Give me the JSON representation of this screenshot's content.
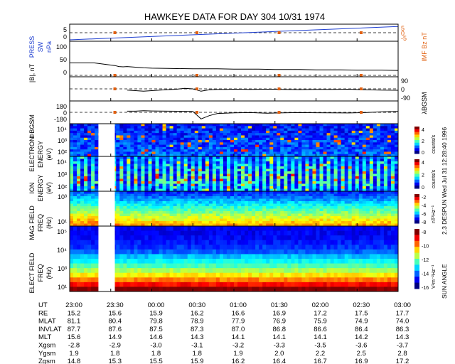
{
  "colors": {
    "press": "#1f3fd0",
    "imf": "#e06010",
    "line": "#000000",
    "dash": "#000000",
    "marker": "#e06010",
    "empty": "#ffffff"
  },
  "chart_data": {
    "type": "line",
    "title": "HAWKEYE DATA FOR DAY 304 10/31 1974",
    "side_label": "2.3 DESPUN  Wed Jul 31 12:28:40 1996",
    "side_label2": "SUN ANGLE",
    "time_axis": {
      "labels": [
        "23:00",
        "23:30",
        "00:00",
        "00:30",
        "01:00",
        "01:30",
        "02:00",
        "02:30",
        "03:00"
      ],
      "range_hours": [
        23.0,
        27.0
      ],
      "data_gap": [
        23.35,
        23.55
      ]
    },
    "panels": [
      {
        "name": "press-imf",
        "type": "line",
        "ylabel_left": [
          "PRESS",
          "SW",
          "nPa"
        ],
        "ylabel_right": [
          "IMF Bz nT"
        ],
        "yticks_left": [
          "5",
          "0"
        ],
        "yticks_right": [
          "5",
          "0",
          "-5"
        ],
        "series": [
          {
            "color": "press",
            "x": [
              23.0,
              27.0
            ],
            "y": [
              0.0,
              5.6
            ]
          }
        ],
        "ref_line": 3.0,
        "markers_x": [
          23.55,
          24.55,
          25.55,
          26.55
        ]
      },
      {
        "name": "b-magnitude",
        "type": "line",
        "ylabel_left": [
          "|B|, nT"
        ],
        "yticks_left": [
          "100",
          "50",
          "0"
        ],
        "ylim": [
          0,
          100
        ],
        "series": [
          {
            "color": "line",
            "x": [
              23.0,
              23.3,
              23.55,
              23.6,
              23.65,
              23.7,
              23.8,
              23.9,
              24.0,
              24.2,
              24.5,
              24.8,
              25.0,
              25.3,
              25.5,
              25.8,
              26.0,
              26.3,
              26.5,
              26.8,
              27.0
            ],
            "y": [
              38,
              38,
              30,
              27,
              26,
              27,
              25,
              23,
              22,
              21,
              20,
              20,
              19,
              19,
              18,
              18,
              17,
              17,
              16,
              16,
              15
            ]
          }
        ],
        "ref_line": 0,
        "markers_x": [
          23.55,
          24.55,
          25.55,
          26.55
        ]
      },
      {
        "name": "lambda-gsm",
        "type": "line",
        "ylabel_right": [
          "λBGSM"
        ],
        "yticks_right": [
          "90",
          "0",
          "-90"
        ],
        "ylim": [
          -90,
          90
        ],
        "series": [
          {
            "color": "line",
            "x": [
              23.7,
              23.8,
              23.9,
              24.0,
              24.1,
              24.2,
              24.3,
              24.4,
              24.5,
              24.6,
              24.7,
              24.8,
              24.9,
              25.0,
              25.2,
              25.4,
              25.6,
              25.8,
              26.0,
              26.2,
              26.4,
              26.6,
              26.8,
              27.0
            ],
            "y": [
              -10,
              -15,
              -20,
              -15,
              -10,
              -6,
              -3,
              5,
              0,
              -20,
              -8,
              -5,
              -5,
              -3,
              -4,
              -3,
              -4,
              -6,
              -5,
              -4,
              -3,
              -8,
              -10,
              -12
            ]
          }
        ],
        "ref_line": 0,
        "markers_x": [
          23.55,
          24.55,
          25.55,
          26.55
        ]
      },
      {
        "name": "phi-gsm",
        "type": "line",
        "ylabel_left": [
          "ΦBGSM"
        ],
        "yticks_left": [
          "180",
          "0",
          "-180"
        ],
        "ylim": [
          -180,
          180
        ],
        "series": [
          {
            "color": "line",
            "x": [
              23.7,
              23.8,
              23.9,
              24.0,
              24.2,
              24.4,
              24.5,
              24.6,
              24.7,
              24.8,
              25.0,
              25.2,
              25.4,
              25.6,
              25.8,
              26.0,
              26.2,
              26.4,
              26.6,
              26.8,
              27.0
            ],
            "y": [
              20,
              20,
              30,
              25,
              20,
              18,
              15,
              -120,
              -60,
              -20,
              -10,
              -5,
              -15,
              -10,
              -5,
              -8,
              -10,
              -12,
              -5,
              10,
              15
            ]
          }
        ],
        "ref_line": 0,
        "markers_x": [
          23.55,
          24.55,
          25.55,
          26.55
        ]
      },
      {
        "name": "electron-spectrogram",
        "type": "heatmap",
        "ylabel_left": [
          "ELECTRON",
          "ENERGY",
          "(eV)"
        ],
        "yticks_left": [
          "10⁴",
          "10³",
          "10²"
        ],
        "colorbar_ticks": [
          "4",
          "2",
          "0"
        ],
        "colorbar_label": "counts/s"
      },
      {
        "name": "ion-spectrogram",
        "type": "heatmap",
        "ylabel_left": [
          "ION",
          "ENERGY",
          "(eV)"
        ],
        "yticks_left": [
          "10⁴",
          "10³",
          "10²"
        ],
        "colorbar_ticks": [
          "4",
          "2",
          "0"
        ],
        "colorbar_label": "counts/s"
      },
      {
        "name": "mag-field-spectrogram",
        "type": "heatmap",
        "ylabel_left": [
          "MAG FIELD",
          "FREQ",
          "(Hz)"
        ],
        "yticks_left": [
          "10³",
          "10¹"
        ],
        "colorbar_ticks": [
          "-2",
          "-4",
          "-6",
          "-8"
        ],
        "colorbar_label": "nT²Hz⁻¹"
      },
      {
        "name": "elect-field-spectrogram",
        "type": "heatmap",
        "ylabel_left": [
          "ELECT FIELD",
          "FREQ",
          "(Hz)"
        ],
        "yticks_left": [
          "10⁵",
          "10⁴",
          "10³",
          "10¹"
        ],
        "colorbar_ticks": [
          "-8",
          "-10",
          "-12",
          "-14",
          "-16"
        ],
        "colorbar_label": "V²m⁻²Hz⁻¹"
      }
    ],
    "ephemeris": {
      "labels": [
        "UT",
        "RE",
        "MLAT",
        "INVLAT",
        "MLT",
        "Xgsm",
        "Ygsm",
        "Zgsm"
      ],
      "rows": [
        [
          "23:00",
          "23:30",
          "00:00",
          "00:30",
          "01:00",
          "01:30",
          "02:00",
          "02:30",
          "03:00"
        ],
        [
          "15.2",
          "15.6",
          "15.9",
          "16.2",
          "16.6",
          "16.9",
          "17.2",
          "17.5",
          "17.7"
        ],
        [
          "81.1",
          "80.4",
          "79.8",
          "78.9",
          "77.9",
          "76.9",
          "75.9",
          "74.9",
          "74.0"
        ],
        [
          "87.7",
          "87.6",
          "87.5",
          "87.3",
          "87.0",
          "86.8",
          "86.6",
          "86.4",
          "86.3"
        ],
        [
          "15.6",
          "14.9",
          "14.6",
          "14.3",
          "14.1",
          "14.1",
          "14.1",
          "14.2",
          "14.3"
        ],
        [
          "-2.8",
          "-2.9",
          "-3.0",
          "-3.1",
          "-3.2",
          "-3.3",
          "-3.5",
          "-3.6",
          "-3.7"
        ],
        [
          "1.9",
          "1.8",
          "1.8",
          "1.8",
          "1.9",
          "2.0",
          "2.2",
          "2.5",
          "2.8"
        ],
        [
          "14.8",
          "15.3",
          "15.5",
          "15.9",
          "16.2",
          "16.4",
          "16.7",
          "16.9",
          "17.2"
        ]
      ]
    }
  }
}
